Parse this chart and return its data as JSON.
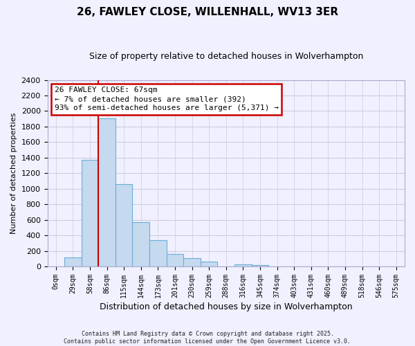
{
  "title": "26, FAWLEY CLOSE, WILLENHALL, WV13 3ER",
  "subtitle": "Size of property relative to detached houses in Wolverhampton",
  "xlabel": "Distribution of detached houses by size in Wolverhampton",
  "ylabel": "Number of detached properties",
  "bar_color": "#c5d9ef",
  "bar_edge_color": "#6baed6",
  "vline_color": "#cc0000",
  "vline_x": 2.5,
  "categories": [
    "0sqm",
    "29sqm",
    "58sqm",
    "86sqm",
    "115sqm",
    "144sqm",
    "173sqm",
    "201sqm",
    "230sqm",
    "259sqm",
    "288sqm",
    "316sqm",
    "345sqm",
    "374sqm",
    "403sqm",
    "431sqm",
    "460sqm",
    "489sqm",
    "518sqm",
    "546sqm",
    "575sqm"
  ],
  "values": [
    0,
    120,
    1370,
    1910,
    1060,
    570,
    335,
    165,
    105,
    60,
    0,
    30,
    20,
    0,
    0,
    0,
    0,
    0,
    0,
    0,
    0
  ],
  "ylim": [
    0,
    2400
  ],
  "yticks": [
    0,
    200,
    400,
    600,
    800,
    1000,
    1200,
    1400,
    1600,
    1800,
    2000,
    2200,
    2400
  ],
  "annotation_title": "26 FAWLEY CLOSE: 67sqm",
  "annotation_line1": "← 7% of detached houses are smaller (392)",
  "annotation_line2": "93% of semi-detached houses are larger (5,371) →",
  "footer_line1": "Contains HM Land Registry data © Crown copyright and database right 2025.",
  "footer_line2": "Contains public sector information licensed under the Open Government Licence v3.0.",
  "background_color": "#f0f0ff",
  "grid_color": "#ccccdd"
}
